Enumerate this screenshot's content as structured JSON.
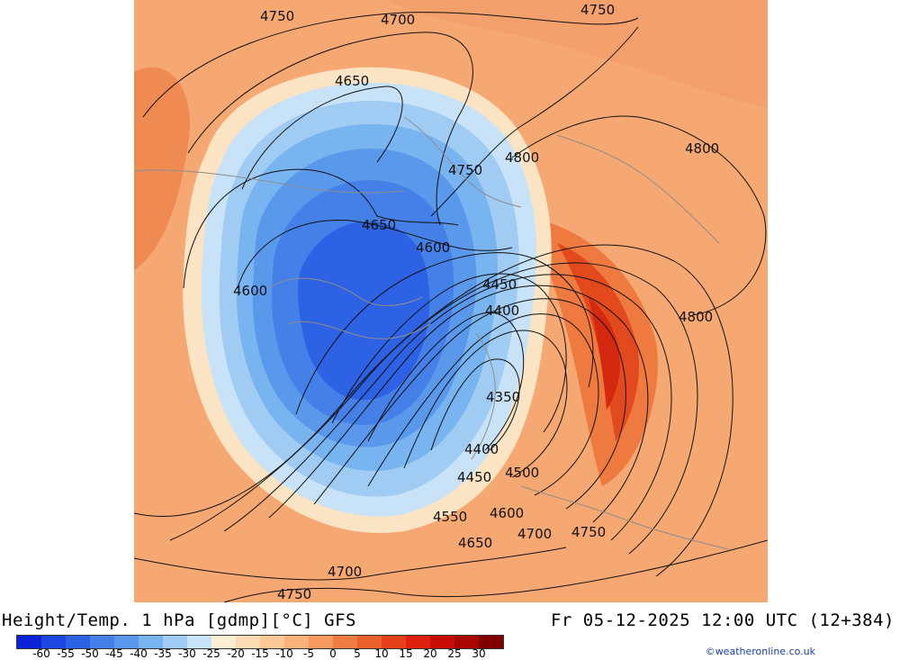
{
  "header": {
    "title": "Height/Temp. 1 hPa [gdmp][°C] GFS",
    "valid_time": "Fr 05-12-2025 12:00 UTC (12+384)"
  },
  "map": {
    "contour_labels": [
      "4750",
      "4700",
      "4750",
      "4650",
      "4750",
      "4800",
      "4800",
      "4650",
      "4600",
      "4600",
      "4450",
      "4400",
      "4350",
      "4400",
      "4450",
      "4500",
      "4550",
      "4600",
      "4650",
      "4700",
      "4750",
      "4700",
      "4750",
      "4800"
    ]
  },
  "legend": {
    "colors": [
      "#0a22d8",
      "#1c46e0",
      "#2e62e4",
      "#4480e8",
      "#5a98ec",
      "#78b4f0",
      "#a0ccf4",
      "#c8e2f8",
      "#fbeed2",
      "#fddcb4",
      "#fcc896",
      "#f8b27a",
      "#f49a60",
      "#f07e44",
      "#ec602c",
      "#e6401a",
      "#de200c",
      "#c80c06",
      "#a80602",
      "#800000"
    ],
    "labels": [
      "-60",
      "-55",
      "-50",
      "-45",
      "-40",
      "-35",
      "-30",
      "-25",
      "-20",
      "-15",
      "-10",
      "-5",
      "0",
      "5",
      "10",
      "15",
      "20",
      "25",
      "30"
    ]
  },
  "credit": "©weatheronline.co.uk"
}
